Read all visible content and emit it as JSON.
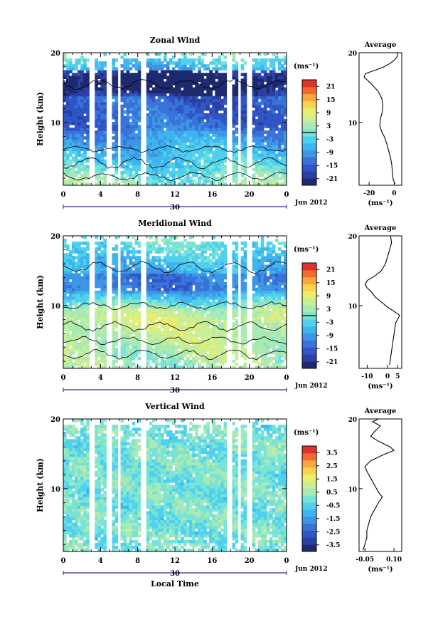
{
  "colors": {
    "map": [
      "#1f2a6e",
      "#2c3fa5",
      "#2f55c6",
      "#3a73d8",
      "#3d95e6",
      "#3fb5ef",
      "#4fd1ee",
      "#79e3d6",
      "#a8e9b4",
      "#c9ee96",
      "#e9ee6e",
      "#fbd24c",
      "#f8a640",
      "#f26b2e",
      "#e0312a"
    ],
    "contour": "#000000"
  },
  "chart_data": [
    {
      "type": "heatmap",
      "title": "Zonal Wind",
      "ylabel": "Height (km)",
      "x_ticks": [
        "0",
        "4",
        "8",
        "12",
        "16",
        "20",
        "0"
      ],
      "y_ticks": [
        "20",
        "10"
      ],
      "xlim": [
        0,
        24
      ],
      "ylim": [
        1,
        20
      ],
      "date_mark": "30",
      "date_label": "Jun 2012",
      "colorbar": {
        "unit": "(ms⁻¹)",
        "ticks": [
          "21",
          "15",
          "9",
          "3",
          "-3",
          "-9",
          "-15",
          "-21"
        ],
        "range": [
          -24,
          24
        ],
        "zero_line": true
      },
      "profile": {
        "title": "Average",
        "x_ticks": [
          "-20",
          "0"
        ],
        "xlim": [
          -28,
          6
        ],
        "xlabel": "(ms⁻¹)",
        "y_ticks": [
          "20",
          "10"
        ],
        "points": [
          [
            0.5,
            1.2
          ],
          [
            -1,
            2
          ],
          [
            -1.5,
            3
          ],
          [
            -2,
            4
          ],
          [
            -3,
            5
          ],
          [
            -4.5,
            6
          ],
          [
            -6,
            7
          ],
          [
            -8,
            8
          ],
          [
            -10,
            8.7
          ],
          [
            -11.5,
            9.5
          ],
          [
            -11,
            10.5
          ],
          [
            -9.5,
            11.5
          ],
          [
            -9,
            12.5
          ],
          [
            -10,
            13.5
          ],
          [
            -13,
            14.5
          ],
          [
            -18,
            15.5
          ],
          [
            -24,
            16.5
          ],
          [
            -23,
            17
          ],
          [
            -15,
            17.5
          ],
          [
            -8,
            18
          ],
          [
            -3,
            18.5
          ],
          [
            0.5,
            19
          ],
          [
            2.5,
            19.5
          ],
          [
            3,
            20
          ]
        ]
      }
    },
    {
      "type": "heatmap",
      "title": "Meridional Wind",
      "ylabel": "Height (km)",
      "x_ticks": [
        "0",
        "4",
        "8",
        "12",
        "16",
        "20",
        "0"
      ],
      "y_ticks": [
        "20",
        "10"
      ],
      "xlim": [
        0,
        24
      ],
      "ylim": [
        1,
        20
      ],
      "date_mark": "30",
      "date_label": "Jun 2012",
      "colorbar": {
        "unit": "(ms⁻¹)",
        "ticks": [
          "21",
          "15",
          "9",
          "3",
          "-3",
          "-9",
          "-15",
          "-21"
        ],
        "range": [
          -24,
          24
        ],
        "zero_line": true
      },
      "profile": {
        "title": "Average",
        "x_ticks": [
          "-10",
          "0",
          "5"
        ],
        "xlim": [
          -14,
          7
        ],
        "xlabel": "(ms⁻¹)",
        "y_ticks": [
          "20",
          "10"
        ],
        "points": [
          [
            1,
            1.5
          ],
          [
            1.5,
            2.5
          ],
          [
            2,
            3.5
          ],
          [
            2.5,
            4.5
          ],
          [
            3,
            5.5
          ],
          [
            3.5,
            6.5
          ],
          [
            4,
            7.5
          ],
          [
            5.5,
            8.3
          ],
          [
            6,
            8.6
          ],
          [
            3,
            9.2
          ],
          [
            0,
            9.8
          ],
          [
            -3,
            10.5
          ],
          [
            -6,
            11.2
          ],
          [
            -8,
            12
          ],
          [
            -10,
            12.5
          ],
          [
            -11,
            13
          ],
          [
            -10,
            13.6
          ],
          [
            -6,
            14.3
          ],
          [
            -3,
            15
          ],
          [
            -1,
            16
          ],
          [
            0,
            17
          ],
          [
            1,
            18
          ],
          [
            2,
            19
          ],
          [
            1.5,
            20
          ]
        ]
      }
    },
    {
      "type": "heatmap",
      "title": "Vertical Wind",
      "ylabel": "Height (km)",
      "xlabel": "Local Time",
      "x_ticks": [
        "0",
        "4",
        "8",
        "12",
        "16",
        "20",
        "0"
      ],
      "y_ticks": [
        "20",
        "10"
      ],
      "xlim": [
        0,
        24
      ],
      "ylim": [
        1,
        20
      ],
      "date_mark": "30",
      "date_label": "Jun 2012",
      "colorbar": {
        "unit": "(ms⁻¹)",
        "ticks": [
          "3.5",
          "2.5",
          "1.5",
          "0.5",
          "-0.5",
          "-1.5",
          "-2.5",
          "-3.5"
        ],
        "range": [
          -4,
          4
        ],
        "zero_line": false
      },
      "profile": {
        "title": "Average",
        "x_ticks": [
          "-0.05",
          "0.10"
        ],
        "xlim": [
          -0.08,
          0.14
        ],
        "xlabel": "(ms⁻¹)",
        "y_ticks": [
          "20",
          "10"
        ],
        "points": [
          [
            -0.06,
            1.2
          ],
          [
            -0.05,
            2
          ],
          [
            -0.04,
            3
          ],
          [
            -0.04,
            4
          ],
          [
            -0.03,
            5
          ],
          [
            -0.02,
            6
          ],
          [
            0.0,
            7
          ],
          [
            0.02,
            8
          ],
          [
            0.04,
            8.8
          ],
          [
            0.02,
            9.5
          ],
          [
            0.0,
            10.5
          ],
          [
            -0.02,
            11.5
          ],
          [
            -0.04,
            12.5
          ],
          [
            -0.05,
            13.2
          ],
          [
            -0.02,
            14
          ],
          [
            0.04,
            14.8
          ],
          [
            0.1,
            15.5
          ],
          [
            0.08,
            16
          ],
          [
            0.02,
            16.8
          ],
          [
            -0.02,
            17.5
          ],
          [
            0.0,
            18.2
          ],
          [
            0.03,
            19
          ],
          [
            -0.01,
            19.6
          ],
          [
            0.02,
            20
          ]
        ]
      }
    }
  ]
}
